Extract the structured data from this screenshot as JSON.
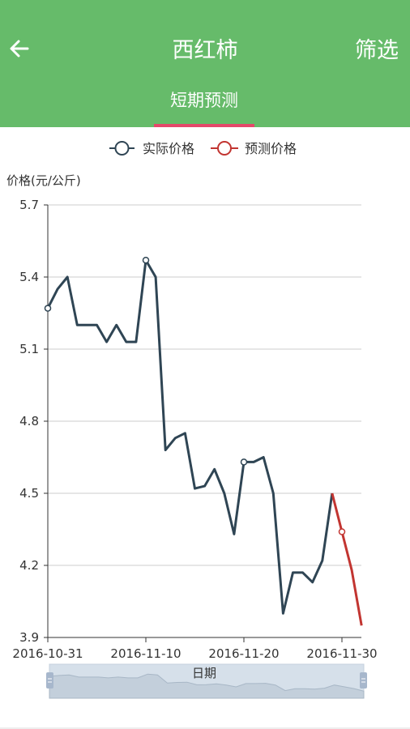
{
  "header": {
    "title": "西红柿",
    "filter_label": "筛选",
    "back_icon": "arrow-left-icon"
  },
  "tabs": [
    {
      "label": "短期预测",
      "active": true
    }
  ],
  "colors": {
    "appbar": "#66bb6a",
    "actual": "#2f4554",
    "forecast": "#c23531",
    "tab_indicator": "#e5486b"
  },
  "chart_data": {
    "type": "line",
    "legend": {
      "position": "top-center",
      "items": [
        "实际价格",
        "预测价格"
      ]
    },
    "ylabel": "价格(元/公斤)",
    "xlabel": "日期",
    "ylim": [
      3.9,
      5.7
    ],
    "yticks": [
      "3.9",
      "4.2",
      "4.5",
      "4.8",
      "5.1",
      "5.4",
      "5.7"
    ],
    "xticks": [
      "2016-10-31",
      "2016-11-10",
      "2016-11-20",
      "2016-11-30"
    ],
    "grid": true,
    "series": [
      {
        "name": "实际价格",
        "points": [
          [
            "2016-10-31",
            5.27
          ],
          [
            "2016-11-01",
            5.35
          ],
          [
            "2016-11-02",
            5.4
          ],
          [
            "2016-11-03",
            5.2
          ],
          [
            "2016-11-04",
            5.2
          ],
          [
            "2016-11-05",
            5.2
          ],
          [
            "2016-11-06",
            5.13
          ],
          [
            "2016-11-07",
            5.2
          ],
          [
            "2016-11-08",
            5.13
          ],
          [
            "2016-11-09",
            5.13
          ],
          [
            "2016-11-10",
            5.47
          ],
          [
            "2016-11-11",
            5.4
          ],
          [
            "2016-11-12",
            4.68
          ],
          [
            "2016-11-13",
            4.73
          ],
          [
            "2016-11-14",
            4.75
          ],
          [
            "2016-11-15",
            4.52
          ],
          [
            "2016-11-16",
            4.53
          ],
          [
            "2016-11-17",
            4.6
          ],
          [
            "2016-11-18",
            4.5
          ],
          [
            "2016-11-19",
            4.33
          ],
          [
            "2016-11-20",
            4.63
          ],
          [
            "2016-11-21",
            4.63
          ],
          [
            "2016-11-22",
            4.65
          ],
          [
            "2016-11-23",
            4.5
          ],
          [
            "2016-11-24",
            4.0
          ],
          [
            "2016-11-25",
            4.17
          ],
          [
            "2016-11-26",
            4.17
          ],
          [
            "2016-11-27",
            4.13
          ],
          [
            "2016-11-28",
            4.22
          ],
          [
            "2016-11-29",
            4.5
          ]
        ],
        "markers": [
          "2016-10-31",
          "2016-11-10",
          "2016-11-20"
        ]
      },
      {
        "name": "预测价格",
        "points": [
          [
            "2016-11-29",
            4.5
          ],
          [
            "2016-11-30",
            4.34
          ],
          [
            "2016-12-01",
            4.18
          ],
          [
            "2016-12-02",
            3.95
          ]
        ],
        "markers": [
          "2016-11-30"
        ]
      }
    ]
  }
}
